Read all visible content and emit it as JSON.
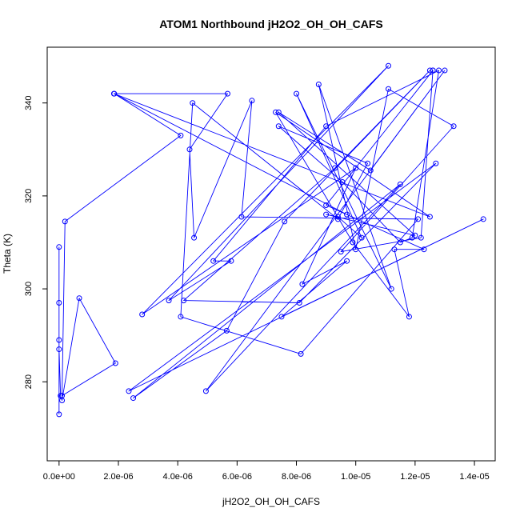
{
  "chart_data": {
    "type": "line",
    "title": "ATOM1 Northbound jH2O2_OH_OH_CAFS",
    "xlabel": "jH2O2_OH_OH_CAFS",
    "ylabel": "Theta (K)",
    "xlim": [
      -4e-07,
      1.47e-05
    ],
    "ylim": [
      263,
      352
    ],
    "x_ticks": [
      0,
      2e-06,
      4e-06,
      6e-06,
      8e-06,
      1e-05,
      1.2e-05,
      1.4e-05
    ],
    "x_tick_labels": [
      "0.0e+00",
      "2.0e-06",
      "4.0e-06",
      "6.0e-06",
      "8.0e-06",
      "1.0e-05",
      "1.2e-05",
      "1.4e-05"
    ],
    "y_ticks": [
      280,
      300,
      320,
      340
    ],
    "y_tick_labels": [
      "280",
      "300",
      "320",
      "340"
    ],
    "grid": false,
    "series": [
      {
        "color": "#0000ff",
        "marker": "open-circle",
        "x": [
          0,
          0,
          0,
          0,
          0,
          5e-08,
          1e-07,
          6.8e-07,
          1.9e-06,
          1e-07,
          2e-07,
          4.1e-06,
          1.86e-06,
          5.68e-06,
          4.4e-06,
          4.55e-06,
          6.5e-06,
          6.15e-06,
          1.21e-05,
          8.15e-06,
          4.1e-06,
          4.5e-06,
          9.4e-06,
          1.04e-05,
          7.4e-06,
          9.55e-06,
          1.15e-05,
          1.19e-05,
          1.28e-05,
          9e-06,
          5.2e-06,
          5.8e-06,
          3.7e-06,
          1.11e-05,
          2.8e-06,
          1e-05,
          8.2e-06,
          9.7e-06,
          7.5e-06,
          1.43e-05,
          2.35e-06,
          1.27e-05,
          8.1e-06,
          4.2e-06,
          9.3e-06,
          1.25e-05,
          7.6e-06,
          5.65e-06,
          2.5e-06,
          1.15e-05,
          4.95e-06,
          1.3e-05,
          1.05e-05,
          7.4e-06,
          1.2e-05,
          9e-06,
          9.4e-06,
          1.02e-05,
          8e-06,
          1.12e-05,
          8.75e-06,
          1e-05,
          1.11e-05,
          1.33e-05,
          9.5e-06,
          1.22e-05,
          1.26e-05,
          1.26e-05,
          9e-06,
          1.23e-05,
          1.13e-05,
          1.18e-05,
          9.9e-06,
          7.3e-06,
          1.25e-05,
          1.85e-06,
          9.7e-06
        ],
        "y": [
          273,
          309,
          289,
          297,
          287,
          277,
          276,
          298,
          284,
          277,
          314.5,
          333,
          342,
          342,
          330,
          311,
          340.5,
          315.5,
          315,
          286,
          294,
          340,
          315,
          327,
          335,
          323,
          310,
          311,
          347,
          335,
          306,
          306,
          297.5,
          348,
          294.5,
          326,
          301,
          306,
          294,
          315,
          278,
          327,
          297,
          297.5,
          326,
          347,
          314.5,
          291,
          276.5,
          322.5,
          278,
          347,
          325.5,
          338,
          311.5,
          316,
          315.5,
          311,
          342,
          300,
          344,
          308.5,
          343,
          335,
          308,
          311,
          347,
          347,
          318,
          308.5,
          308.5,
          294,
          310,
          338,
          315.5,
          342,
          316
        ]
      }
    ]
  }
}
